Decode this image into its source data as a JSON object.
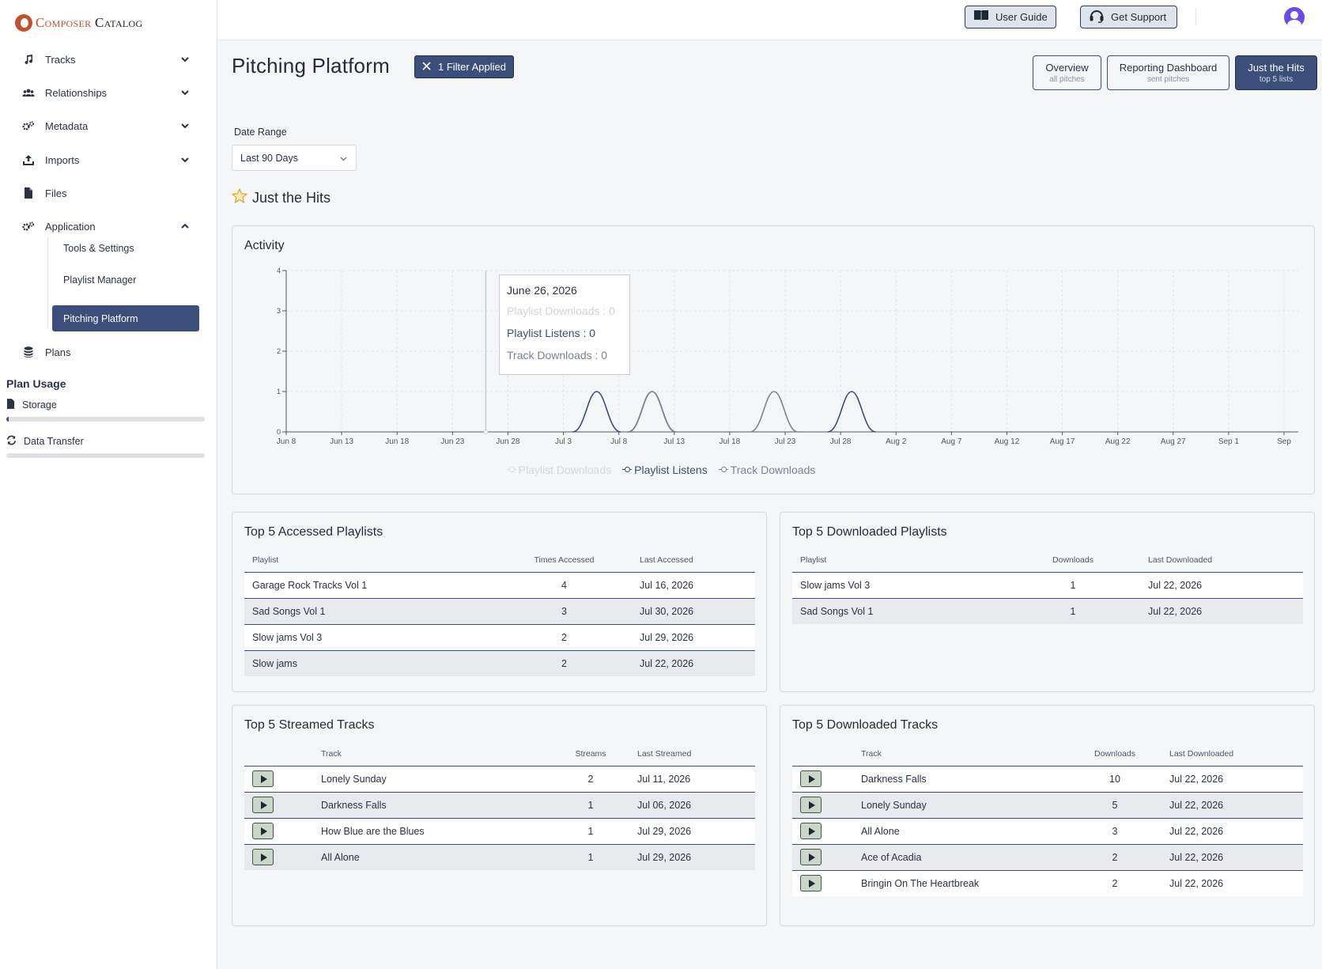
{
  "app": {
    "logo_word1": "Composer",
    "logo_word2": "Catalog"
  },
  "sidebar": {
    "items": [
      {
        "label": "Tracks",
        "icon": "music-note-icon"
      },
      {
        "label": "Relationships",
        "icon": "users-icon"
      },
      {
        "label": "Metadata",
        "icon": "gears-icon"
      },
      {
        "label": "Imports",
        "icon": "upload-icon"
      },
      {
        "label": "Files",
        "icon": "file-icon"
      },
      {
        "label": "Application",
        "icon": "gears-icon"
      },
      {
        "label": "Plans",
        "icon": "database-icon"
      }
    ],
    "application_sub": [
      "Tools & Settings",
      "Playlist Manager",
      "Pitching Platform"
    ],
    "plan_usage_title": "Plan Usage",
    "storage_label": "Storage",
    "storage_fraction": 0.01,
    "transfer_label": "Data Transfer",
    "transfer_fraction": 0.0
  },
  "topbar": {
    "user_guide": "User Guide",
    "get_support": "Get Support"
  },
  "header": {
    "title": "Pitching Platform",
    "filter_chip": "1 Filter Applied",
    "views": [
      {
        "label": "Overview",
        "sub": "all pitches"
      },
      {
        "label": "Reporting Dashboard",
        "sub": "sent pitches"
      },
      {
        "label": "Just the Hits",
        "sub": "top 5 lists"
      }
    ]
  },
  "filters": {
    "date_range_label": "Date Range",
    "date_range_value": "Last 90 Days"
  },
  "section": {
    "title": "Just the Hits"
  },
  "activity": {
    "title": "Activity",
    "tooltip": {
      "date": "June 26, 2026",
      "rows": [
        "Playlist Downloads : 0",
        "Playlist Listens : 0",
        "Track Downloads : 0"
      ]
    }
  },
  "chart_data": {
    "type": "area",
    "title": "Activity",
    "x_ticks": [
      "Jun 8",
      "Jun 13",
      "Jun 18",
      "Jun 23",
      "Jun 28",
      "Jul 3",
      "Jul 8",
      "Jul 13",
      "Jul 18",
      "Jul 23",
      "Jul 28",
      "Aug 2",
      "Aug 7",
      "Aug 12",
      "Aug 17",
      "Aug 22",
      "Aug 27",
      "Sep 1",
      "Sep"
    ],
    "y_ticks": [
      0,
      1,
      2,
      3,
      4
    ],
    "ylim": [
      0,
      4
    ],
    "legend": "bottom",
    "series": [
      {
        "name": "Playlist Downloads",
        "color": "#d5d9e0",
        "hidden": true,
        "points": []
      },
      {
        "name": "Playlist Listens",
        "color": "#3b4f7a",
        "points": [
          {
            "x": "Jul 6",
            "y": 1
          },
          {
            "x": "Jul 11",
            "y": 1
          },
          {
            "x": "Jul 29",
            "y": 1
          }
        ]
      },
      {
        "name": "Track Downloads",
        "color": "#7a8294",
        "points": [
          {
            "x": "Jul 11",
            "y": 1
          },
          {
            "x": "Jul 22",
            "y": 1
          }
        ]
      }
    ]
  },
  "accessed_playlists": {
    "title": "Top 5 Accessed Playlists",
    "headers": [
      "Playlist",
      "Times Accessed",
      "Last Accessed"
    ],
    "rows": [
      [
        "Garage Rock Tracks Vol 1",
        "4",
        "Jul 16, 2026"
      ],
      [
        "Sad Songs Vol 1",
        "3",
        "Jul 30, 2026"
      ],
      [
        "Slow jams Vol 3",
        "2",
        "Jul 29, 2026"
      ],
      [
        "Slow jams",
        "2",
        "Jul 22, 2026"
      ]
    ]
  },
  "downloaded_playlists": {
    "title": "Top 5 Downloaded Playlists",
    "headers": [
      "Playlist",
      "Downloads",
      "Last Downloaded"
    ],
    "rows": [
      [
        "Slow jams Vol 3",
        "1",
        "Jul 22, 2026"
      ],
      [
        "Sad Songs Vol 1",
        "1",
        "Jul 22, 2026"
      ]
    ]
  },
  "streamed_tracks": {
    "title": "Top 5 Streamed Tracks",
    "headers": [
      "",
      "Track",
      "Streams",
      "Last Streamed"
    ],
    "rows": [
      [
        "Lonely Sunday",
        "2",
        "Jul 11, 2026"
      ],
      [
        "Darkness Falls",
        "1",
        "Jul 06, 2026"
      ],
      [
        "How Blue are the Blues",
        "1",
        "Jul 29, 2026"
      ],
      [
        "All Alone",
        "1",
        "Jul 29, 2026"
      ]
    ]
  },
  "downloaded_tracks": {
    "title": "Top 5 Downloaded Tracks",
    "headers": [
      "",
      "Track",
      "Downloads",
      "Last Downloaded"
    ],
    "rows": [
      [
        "Darkness Falls",
        "10",
        "Jul 22, 2026"
      ],
      [
        "Lonely Sunday",
        "5",
        "Jul 22, 2026"
      ],
      [
        "All Alone",
        "3",
        "Jul 22, 2026"
      ],
      [
        "Ace of Acadia",
        "2",
        "Jul 22, 2026"
      ],
      [
        "Bringin On The Heartbreak",
        "2",
        "Jul 22, 2026"
      ]
    ]
  }
}
